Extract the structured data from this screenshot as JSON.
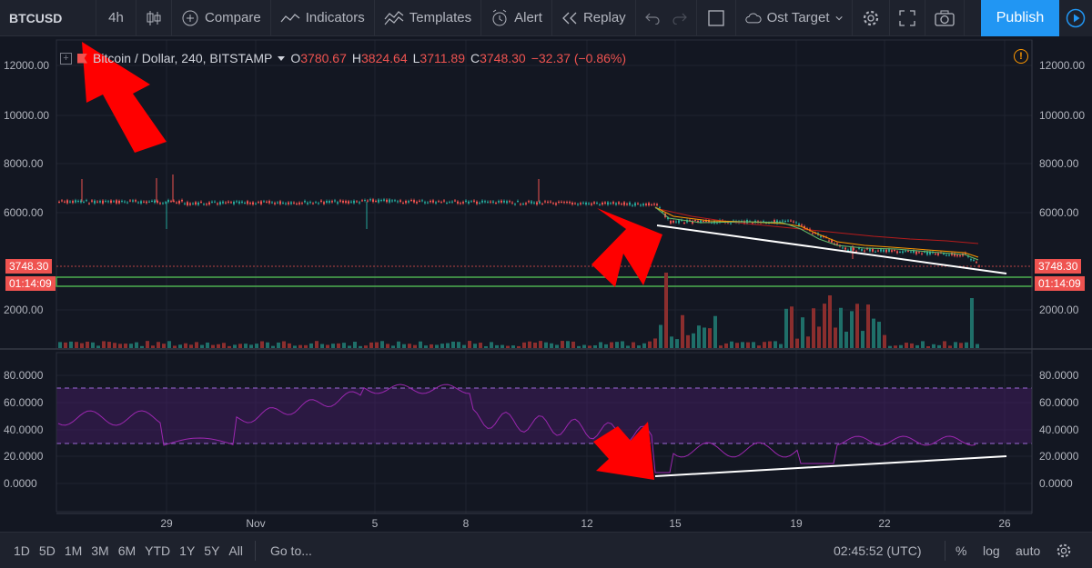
{
  "toolbar": {
    "symbol": "BTCUSD",
    "interval": "4h",
    "compare_label": "Compare",
    "indicators_label": "Indicators",
    "templates_label": "Templates",
    "alert_label": "Alert",
    "replay_label": "Replay",
    "layout_name": "Ost Target",
    "publish_label": "Publish"
  },
  "legend": {
    "name": "Bitcoin / Dollar, 240, BITSTAMP",
    "open_key": "O",
    "open": "3780.67",
    "high_key": "H",
    "high": "3824.64",
    "low_key": "L",
    "low": "3711.89",
    "close_key": "C",
    "close": "3748.30",
    "change": "−32.37 (−0.86%)",
    "alert_symbol": "!"
  },
  "price_axis": {
    "ticks": [
      "12000.00",
      "10000.00",
      "8000.00",
      "6000.00",
      "2000.00"
    ],
    "current_price": "3748.30",
    "countdown": "01:14:09"
  },
  "rsi_axis": {
    "ticks": [
      "80.0000",
      "60.0000",
      "40.0000",
      "20.0000",
      "0.0000"
    ]
  },
  "time_axis": {
    "ticks": [
      "29",
      "Nov",
      "5",
      "8",
      "12",
      "15",
      "19",
      "22",
      "26"
    ]
  },
  "bottombar": {
    "ranges": [
      "1D",
      "5D",
      "1M",
      "3M",
      "6M",
      "YTD",
      "1Y",
      "5Y",
      "All"
    ],
    "goto_label": "Go to...",
    "clock": "02:45:52 (UTC)",
    "percent_label": "%",
    "log_label": "log",
    "auto_label": "auto"
  },
  "colors": {
    "background": "#131722",
    "up": "#26a69a",
    "down": "#ef5350",
    "rsi": "#9c27b0",
    "annotation": "#ff0000",
    "publish": "#2196f3"
  }
}
